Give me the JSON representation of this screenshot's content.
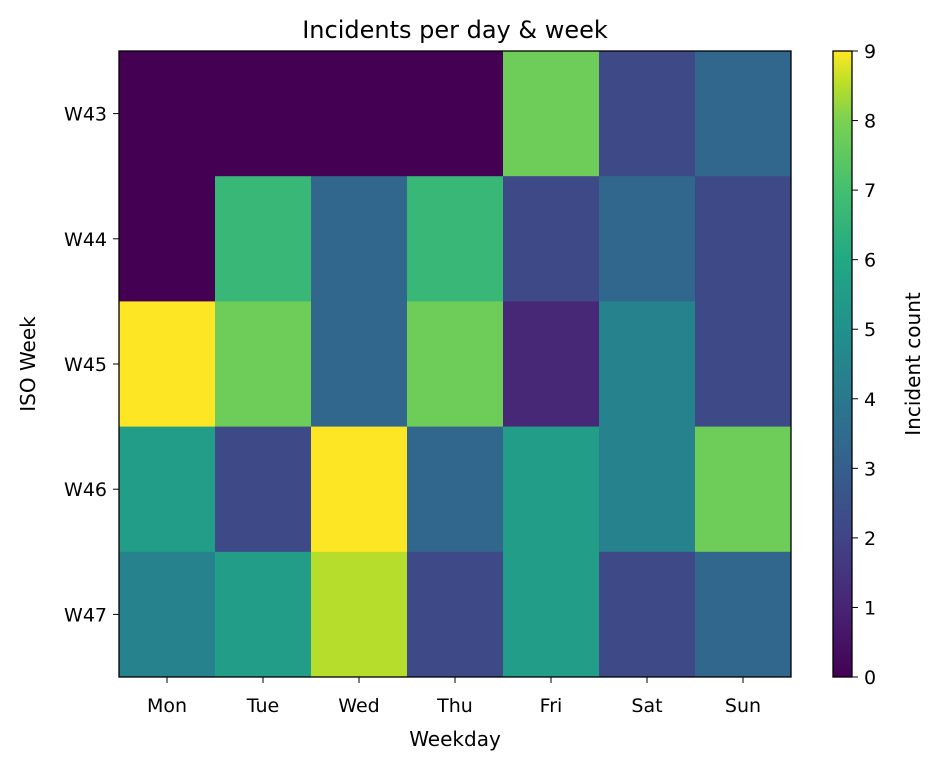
{
  "chart_data": {
    "type": "heatmap",
    "title": "Incidents per day & week",
    "xlabel": "Weekday",
    "ylabel": "ISO Week",
    "x_categories": [
      "Mon",
      "Tue",
      "Wed",
      "Thu",
      "Fri",
      "Sat",
      "Sun"
    ],
    "y_categories": [
      "W43",
      "W44",
      "W45",
      "W46",
      "W47"
    ],
    "values": [
      [
        0,
        0,
        0,
        0,
        7,
        2,
        3
      ],
      [
        0,
        6,
        3,
        6,
        2,
        3,
        2
      ],
      [
        9,
        7,
        3,
        7,
        1,
        4,
        2
      ],
      [
        5,
        2,
        9,
        3,
        5,
        4,
        7
      ],
      [
        4,
        5,
        8,
        2,
        5,
        2,
        3
      ]
    ],
    "colormap": "viridis",
    "colorbar": {
      "label": "Incident count",
      "range": [
        0,
        9
      ],
      "ticks": [
        "0",
        "1",
        "2",
        "3",
        "4",
        "5",
        "6",
        "7",
        "8",
        "9"
      ]
    },
    "grid": false
  }
}
